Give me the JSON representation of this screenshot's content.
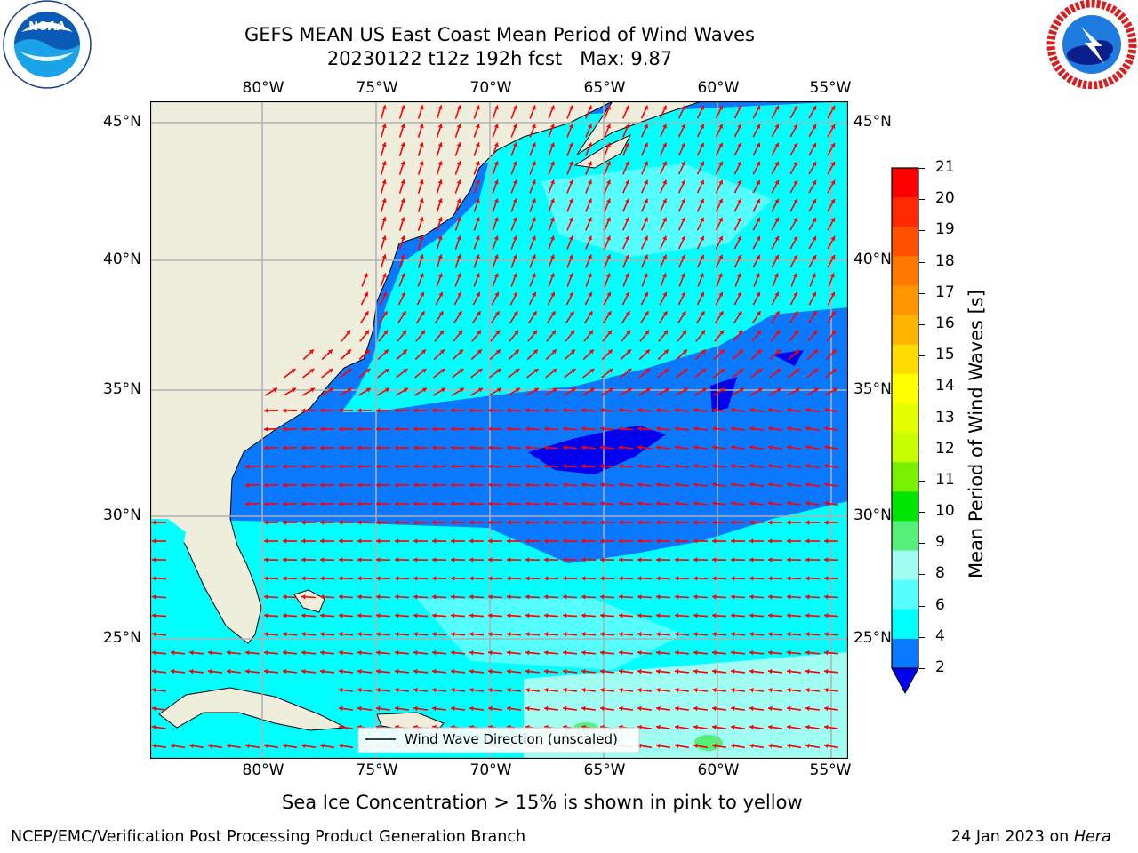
{
  "header": {
    "title_line1": "GEFS MEAN US East Coast Mean Period of Wind Waves",
    "title_line2": "20230122 t12z 192h fcst   Max: 9.87"
  },
  "logos": {
    "left": {
      "icon": "noaa-logo-icon",
      "text": "NOAA"
    },
    "right": {
      "icon": "national-weather-service-logo-icon",
      "text": "NATIONAL WEATHER SERVICE"
    }
  },
  "map": {
    "longitude_labels": [
      "80°W",
      "75°W",
      "70°W",
      "65°W",
      "60°W",
      "55°W"
    ],
    "latitude_labels": [
      "45°N",
      "40°N",
      "35°N",
      "30°N",
      "25°N"
    ],
    "legend_label": "Wind Wave Direction (unscaled)",
    "colors": {
      "land": "#efeddc",
      "band_2_4": "#0a78ff",
      "band_under_2": "#0000f0",
      "band_4_6": "#00ffff",
      "band_6_8": "#55ffff",
      "band_8_9": "#a0fff2",
      "band_9_10": "#55f07a",
      "arrow": "#ff0000",
      "grid": "#b0b0b0"
    }
  },
  "colorbar": {
    "title": "Mean Period of Wind Waves [s]",
    "ticks": [
      "21",
      "20",
      "19",
      "18",
      "17",
      "16",
      "15",
      "14",
      "13",
      "12",
      "11",
      "10",
      "9",
      "8",
      "6",
      "4",
      "2"
    ],
    "colors_top_to_bottom": [
      "#ff0000",
      "#ff2800",
      "#ff5000",
      "#ff7800",
      "#ff9600",
      "#ffb400",
      "#ffdc00",
      "#ffff00",
      "#e6ff00",
      "#c8ff00",
      "#78f000",
      "#00e600",
      "#55f07a",
      "#a0fff2",
      "#55ffff",
      "#00ffff",
      "#0a78ff"
    ],
    "extend_color": "#0000f0"
  },
  "footer": {
    "note": "Sea Ice Concentration > 15% is shown in pink to yellow",
    "left": "NCEP/EMC/Verification Post Processing Product Generation Branch",
    "right_prefix": "24 Jan 2023 on ",
    "right_host": "Hera"
  }
}
